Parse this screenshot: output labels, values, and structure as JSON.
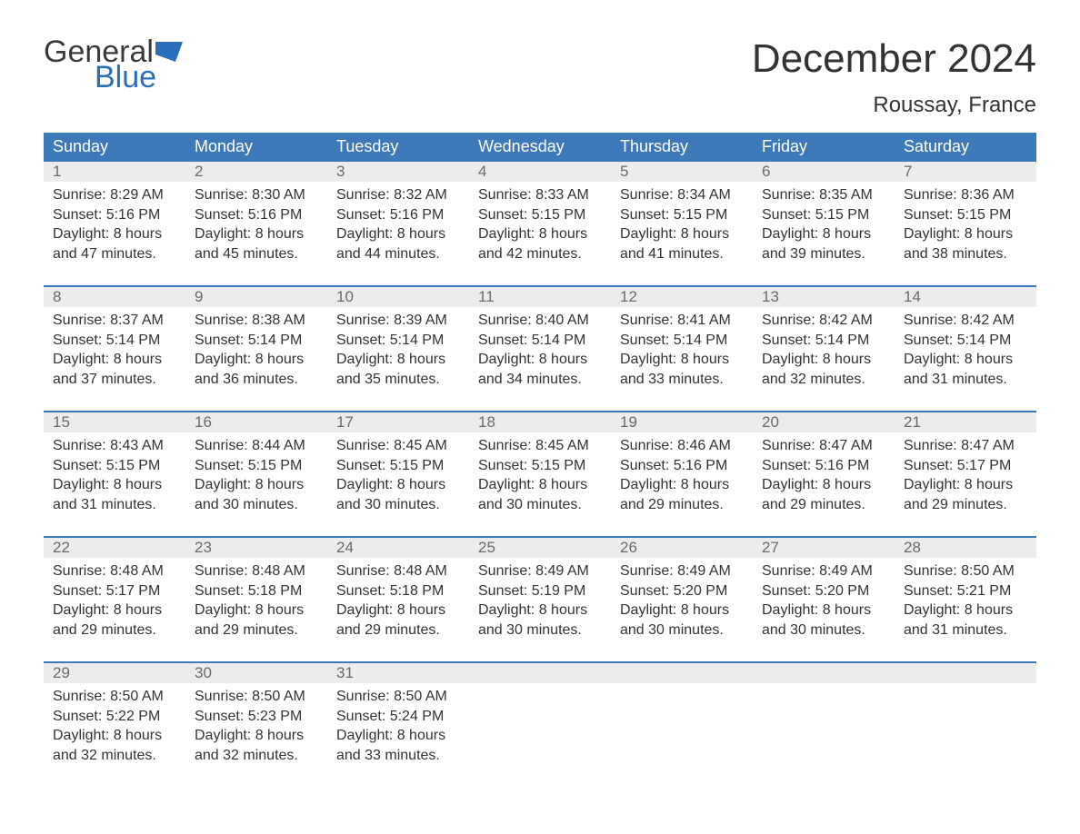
{
  "logo": {
    "text_general": "General",
    "text_blue": "Blue",
    "flag_color": "#2a6db8"
  },
  "header": {
    "month_title": "December 2024",
    "location": "Roussay, France"
  },
  "colors": {
    "header_bg": "#3d79b8",
    "header_text": "#ffffff",
    "daynum_bg": "#ececec",
    "daynum_text": "#6a6a6a",
    "body_text": "#333333",
    "week_border": "#3d79b8"
  },
  "days_of_week": [
    "Sunday",
    "Monday",
    "Tuesday",
    "Wednesday",
    "Thursday",
    "Friday",
    "Saturday"
  ],
  "weeks": [
    [
      {
        "n": "1",
        "sr": "8:29 AM",
        "ss": "5:16 PM",
        "dl": "8 hours and 47 minutes."
      },
      {
        "n": "2",
        "sr": "8:30 AM",
        "ss": "5:16 PM",
        "dl": "8 hours and 45 minutes."
      },
      {
        "n": "3",
        "sr": "8:32 AM",
        "ss": "5:16 PM",
        "dl": "8 hours and 44 minutes."
      },
      {
        "n": "4",
        "sr": "8:33 AM",
        "ss": "5:15 PM",
        "dl": "8 hours and 42 minutes."
      },
      {
        "n": "5",
        "sr": "8:34 AM",
        "ss": "5:15 PM",
        "dl": "8 hours and 41 minutes."
      },
      {
        "n": "6",
        "sr": "8:35 AM",
        "ss": "5:15 PM",
        "dl": "8 hours and 39 minutes."
      },
      {
        "n": "7",
        "sr": "8:36 AM",
        "ss": "5:15 PM",
        "dl": "8 hours and 38 minutes."
      }
    ],
    [
      {
        "n": "8",
        "sr": "8:37 AM",
        "ss": "5:14 PM",
        "dl": "8 hours and 37 minutes."
      },
      {
        "n": "9",
        "sr": "8:38 AM",
        "ss": "5:14 PM",
        "dl": "8 hours and 36 minutes."
      },
      {
        "n": "10",
        "sr": "8:39 AM",
        "ss": "5:14 PM",
        "dl": "8 hours and 35 minutes."
      },
      {
        "n": "11",
        "sr": "8:40 AM",
        "ss": "5:14 PM",
        "dl": "8 hours and 34 minutes."
      },
      {
        "n": "12",
        "sr": "8:41 AM",
        "ss": "5:14 PM",
        "dl": "8 hours and 33 minutes."
      },
      {
        "n": "13",
        "sr": "8:42 AM",
        "ss": "5:14 PM",
        "dl": "8 hours and 32 minutes."
      },
      {
        "n": "14",
        "sr": "8:42 AM",
        "ss": "5:14 PM",
        "dl": "8 hours and 31 minutes."
      }
    ],
    [
      {
        "n": "15",
        "sr": "8:43 AM",
        "ss": "5:15 PM",
        "dl": "8 hours and 31 minutes."
      },
      {
        "n": "16",
        "sr": "8:44 AM",
        "ss": "5:15 PM",
        "dl": "8 hours and 30 minutes."
      },
      {
        "n": "17",
        "sr": "8:45 AM",
        "ss": "5:15 PM",
        "dl": "8 hours and 30 minutes."
      },
      {
        "n": "18",
        "sr": "8:45 AM",
        "ss": "5:15 PM",
        "dl": "8 hours and 30 minutes."
      },
      {
        "n": "19",
        "sr": "8:46 AM",
        "ss": "5:16 PM",
        "dl": "8 hours and 29 minutes."
      },
      {
        "n": "20",
        "sr": "8:47 AM",
        "ss": "5:16 PM",
        "dl": "8 hours and 29 minutes."
      },
      {
        "n": "21",
        "sr": "8:47 AM",
        "ss": "5:17 PM",
        "dl": "8 hours and 29 minutes."
      }
    ],
    [
      {
        "n": "22",
        "sr": "8:48 AM",
        "ss": "5:17 PM",
        "dl": "8 hours and 29 minutes."
      },
      {
        "n": "23",
        "sr": "8:48 AM",
        "ss": "5:18 PM",
        "dl": "8 hours and 29 minutes."
      },
      {
        "n": "24",
        "sr": "8:48 AM",
        "ss": "5:18 PM",
        "dl": "8 hours and 29 minutes."
      },
      {
        "n": "25",
        "sr": "8:49 AM",
        "ss": "5:19 PM",
        "dl": "8 hours and 30 minutes."
      },
      {
        "n": "26",
        "sr": "8:49 AM",
        "ss": "5:20 PM",
        "dl": "8 hours and 30 minutes."
      },
      {
        "n": "27",
        "sr": "8:49 AM",
        "ss": "5:20 PM",
        "dl": "8 hours and 30 minutes."
      },
      {
        "n": "28",
        "sr": "8:50 AM",
        "ss": "5:21 PM",
        "dl": "8 hours and 31 minutes."
      }
    ],
    [
      {
        "n": "29",
        "sr": "8:50 AM",
        "ss": "5:22 PM",
        "dl": "8 hours and 32 minutes."
      },
      {
        "n": "30",
        "sr": "8:50 AM",
        "ss": "5:23 PM",
        "dl": "8 hours and 32 minutes."
      },
      {
        "n": "31",
        "sr": "8:50 AM",
        "ss": "5:24 PM",
        "dl": "8 hours and 33 minutes."
      },
      null,
      null,
      null,
      null
    ]
  ],
  "labels": {
    "sunrise": "Sunrise: ",
    "sunset": "Sunset: ",
    "daylight": "Daylight: "
  }
}
